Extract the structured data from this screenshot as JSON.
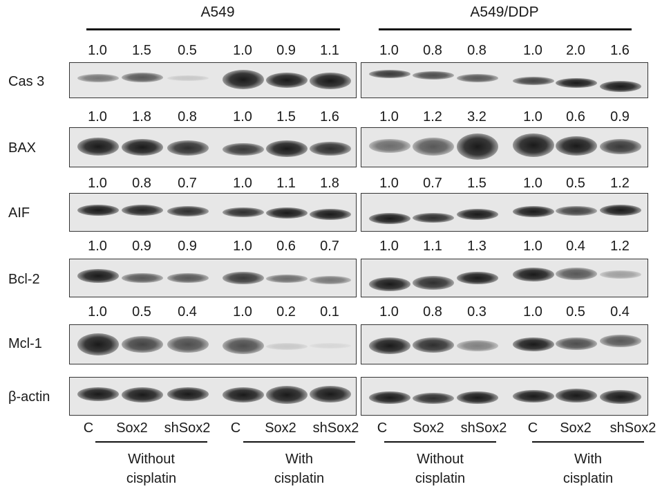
{
  "groups": {
    "a549": "A549",
    "ddp": "A549/DDP"
  },
  "rows": [
    {
      "label": "Cas 3",
      "a549": [
        "1.0",
        "1.5",
        "0.5",
        "1.0",
        "0.9",
        "1.1"
      ],
      "ddp": [
        "1.0",
        "0.8",
        "0.8",
        "1.0",
        "2.0",
        "1.6"
      ]
    },
    {
      "label": "BAX",
      "a549": [
        "1.0",
        "1.8",
        "0.8",
        "1.0",
        "1.5",
        "1.6"
      ],
      "ddp": [
        "1.0",
        "1.2",
        "3.2",
        "1.0",
        "0.6",
        "0.9"
      ]
    },
    {
      "label": "AIF",
      "a549": [
        "1.0",
        "0.8",
        "0.7",
        "1.0",
        "1.1",
        "1.8"
      ],
      "ddp": [
        "1.0",
        "0.7",
        "1.5",
        "1.0",
        "0.5",
        "1.2"
      ]
    },
    {
      "label": "Bcl-2",
      "a549": [
        "1.0",
        "0.9",
        "0.9",
        "1.0",
        "0.6",
        "0.7"
      ],
      "ddp": [
        "1.0",
        "1.1",
        "1.3",
        "1.0",
        "0.4",
        "1.2"
      ]
    },
    {
      "label": "Mcl-1",
      "a549": [
        "1.0",
        "0.5",
        "0.4",
        "1.0",
        "0.2",
        "0.1"
      ],
      "ddp": [
        "1.0",
        "0.8",
        "0.3",
        "1.0",
        "0.5",
        "0.4"
      ]
    },
    {
      "label": "β-actin"
    }
  ],
  "lanes": [
    "C",
    "Sox2",
    "shSox2",
    "C",
    "Sox2",
    "shSox2",
    "C",
    "Sox2",
    "shSox2",
    "C",
    "Sox2",
    "shSox2"
  ],
  "conditions": [
    {
      "line1": "Without",
      "line2": "cisplatin"
    },
    {
      "line1": "With",
      "line2": "cisplatin"
    },
    {
      "line1": "Without",
      "line2": "cisplatin"
    },
    {
      "line1": "With",
      "line2": "cisplatin"
    }
  ]
}
